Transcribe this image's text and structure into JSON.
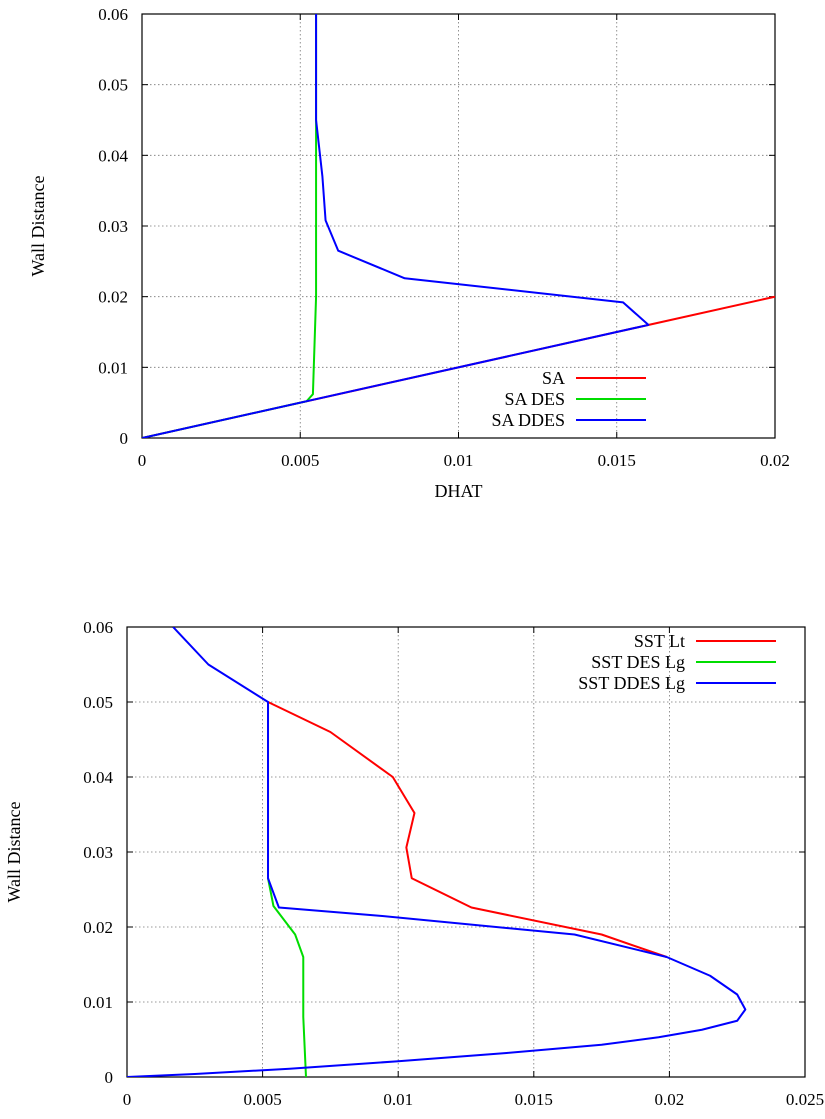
{
  "chart_data": [
    {
      "type": "line",
      "title": "",
      "xlabel": "DHAT",
      "ylabel": "Wall Distance",
      "xlim": [
        0,
        0.02
      ],
      "ylim": [
        0,
        0.06
      ],
      "xticks": [
        "0",
        "0.005",
        "0.01",
        "0.015",
        "0.02"
      ],
      "yticks": [
        "0",
        "0.01",
        "0.02",
        "0.03",
        "0.04",
        "0.05",
        "0.06"
      ],
      "grid": true,
      "legend_position": "bottom-right",
      "series": [
        {
          "name": "SA",
          "color": "#ff0000",
          "points": [
            [
              0,
              0
            ],
            [
              0.02,
              0.02
            ]
          ]
        },
        {
          "name": "SA DES",
          "color": "#00dd00",
          "points": [
            [
              0,
              0
            ],
            [
              0.0052,
              0.0052
            ],
            [
              0.0054,
              0.0062
            ],
            [
              0.0055,
              0.02
            ],
            [
              0.0055,
              0.045
            ],
            [
              0.0055,
              0.06
            ]
          ]
        },
        {
          "name": "SA DDES",
          "color": "#0000ff",
          "points": [
            [
              0,
              0
            ],
            [
              0.016,
              0.016
            ],
            [
              0.0152,
              0.0192
            ],
            [
              0.0083,
              0.0226
            ],
            [
              0.0062,
              0.0265
            ],
            [
              0.0058,
              0.0308
            ],
            [
              0.0057,
              0.037
            ],
            [
              0.0055,
              0.045
            ],
            [
              0.0055,
              0.06
            ]
          ]
        }
      ]
    },
    {
      "type": "line",
      "title": "",
      "xlabel": "",
      "ylabel": "Wall Distance",
      "xlim": [
        0,
        0.025
      ],
      "ylim": [
        0,
        0.06
      ],
      "xticks": [
        "0",
        "0.005",
        "0.01",
        "0.015",
        "0.02",
        "0.025"
      ],
      "yticks": [
        "0",
        "0.01",
        "0.02",
        "0.03",
        "0.04",
        "0.05",
        "0.06"
      ],
      "grid": true,
      "legend_position": "top-right",
      "series": [
        {
          "name": "SST Lt",
          "color": "#ff0000",
          "points": [
            [
              0.0052,
              0.05
            ],
            [
              0.0075,
              0.046
            ],
            [
              0.0098,
              0.04
            ],
            [
              0.0106,
              0.0352
            ],
            [
              0.0103,
              0.0306
            ],
            [
              0.0105,
              0.0265
            ],
            [
              0.0127,
              0.0226
            ],
            [
              0.0175,
              0.019
            ],
            [
              0.0199,
              0.016
            ]
          ]
        },
        {
          "name": "SST DES Lg",
          "color": "#00dd00",
          "points": [
            [
              0.0052,
              0.05
            ],
            [
              0.0052,
              0.0265
            ],
            [
              0.0054,
              0.0228
            ],
            [
              0.0062,
              0.019
            ],
            [
              0.0065,
              0.016
            ],
            [
              0.0065,
              0.008
            ],
            [
              0.0066,
              0.0
            ]
          ]
        },
        {
          "name": "SST DDES Lg",
          "color": "#0000ff",
          "points": [
            [
              0.0017,
              0.06
            ],
            [
              0.003,
              0.055
            ],
            [
              0.0052,
              0.05
            ],
            [
              0.0052,
              0.035
            ],
            [
              0.0052,
              0.0265
            ],
            [
              0.0056,
              0.0226
            ],
            [
              0.0093,
              0.0215
            ],
            [
              0.0165,
              0.019
            ],
            [
              0.0199,
              0.016
            ],
            [
              0.0215,
              0.0135
            ],
            [
              0.0225,
              0.011
            ],
            [
              0.0228,
              0.009
            ],
            [
              0.0225,
              0.0075
            ],
            [
              0.0212,
              0.0063
            ],
            [
              0.0196,
              0.0053
            ],
            [
              0.0175,
              0.0043
            ],
            [
              0.014,
              0.0032
            ],
            [
              0.01,
              0.0021
            ],
            [
              0.006,
              0.0011
            ],
            [
              0.0025,
              0.0004
            ],
            [
              0.0,
              0.0
            ]
          ]
        }
      ]
    }
  ]
}
